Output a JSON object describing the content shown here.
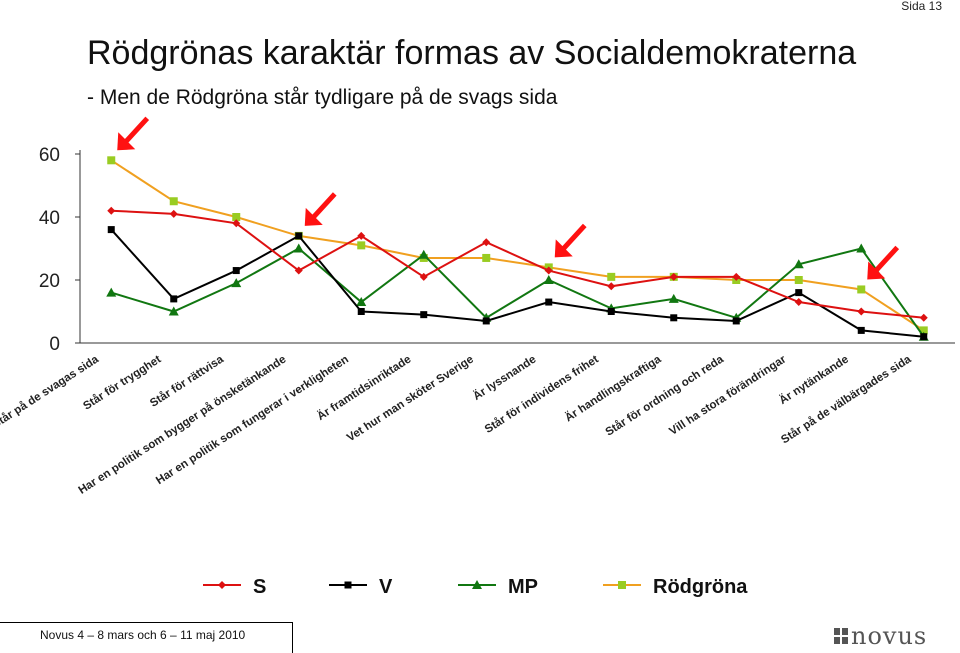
{
  "page": {
    "page_label": "Sida 13",
    "footer": "Novus 4 – 8 mars och 6 – 11 maj 2010",
    "logo_text": "novus"
  },
  "colors": {
    "S": "#dd1111",
    "V": "#000000",
    "MP": "#117711",
    "Rödgröna": "#f0a020",
    "marker_Rödgröna": "#99cc22",
    "arrow": "#ff1111"
  },
  "chart_data": {
    "type": "line",
    "title": "Rödgrönas karaktär formas av Socialdemokraterna",
    "subtitle": "- Men de Rödgröna står tydligare på de svags sida",
    "xlabel": "",
    "ylabel": "",
    "ylim": [
      0,
      60
    ],
    "yticks": [
      0,
      20,
      40,
      60
    ],
    "grid": false,
    "legend_position": "bottom",
    "categories": [
      "Står på de svagas sida",
      "Står för trygghet",
      "Står för rättvisa",
      "Har en politik som bygger på önsketänkande",
      "Har en politik som fungerar i verkligheten",
      "Är framtidsinriktade",
      "Vet hur man sköter Sverige",
      "Är lyssnande",
      "Står för individens frihet",
      "Är handlingskraftiga",
      "Står för ordning och reda",
      "Vill ha stora förändringar",
      "Är nytänkande",
      "Står på de välbärgades sida"
    ],
    "series": [
      {
        "name": "S",
        "marker": "diamond",
        "values": [
          42,
          41,
          38,
          23,
          34,
          21,
          32,
          23,
          18,
          21,
          21,
          13,
          10,
          8
        ]
      },
      {
        "name": "V",
        "marker": "square",
        "values": [
          36,
          14,
          23,
          34,
          10,
          9,
          7,
          13,
          10,
          8,
          7,
          16,
          4,
          2
        ]
      },
      {
        "name": "MP",
        "marker": "triangle",
        "values": [
          16,
          10,
          19,
          30,
          13,
          28,
          8,
          20,
          11,
          14,
          8,
          25,
          30,
          2
        ]
      },
      {
        "name": "Rödgröna",
        "marker": "square",
        "values": [
          58,
          45,
          40,
          34,
          31,
          27,
          27,
          24,
          21,
          21,
          20,
          20,
          17,
          4
        ]
      }
    ],
    "arrow_categories": [
      0,
      3,
      7,
      12
    ]
  }
}
